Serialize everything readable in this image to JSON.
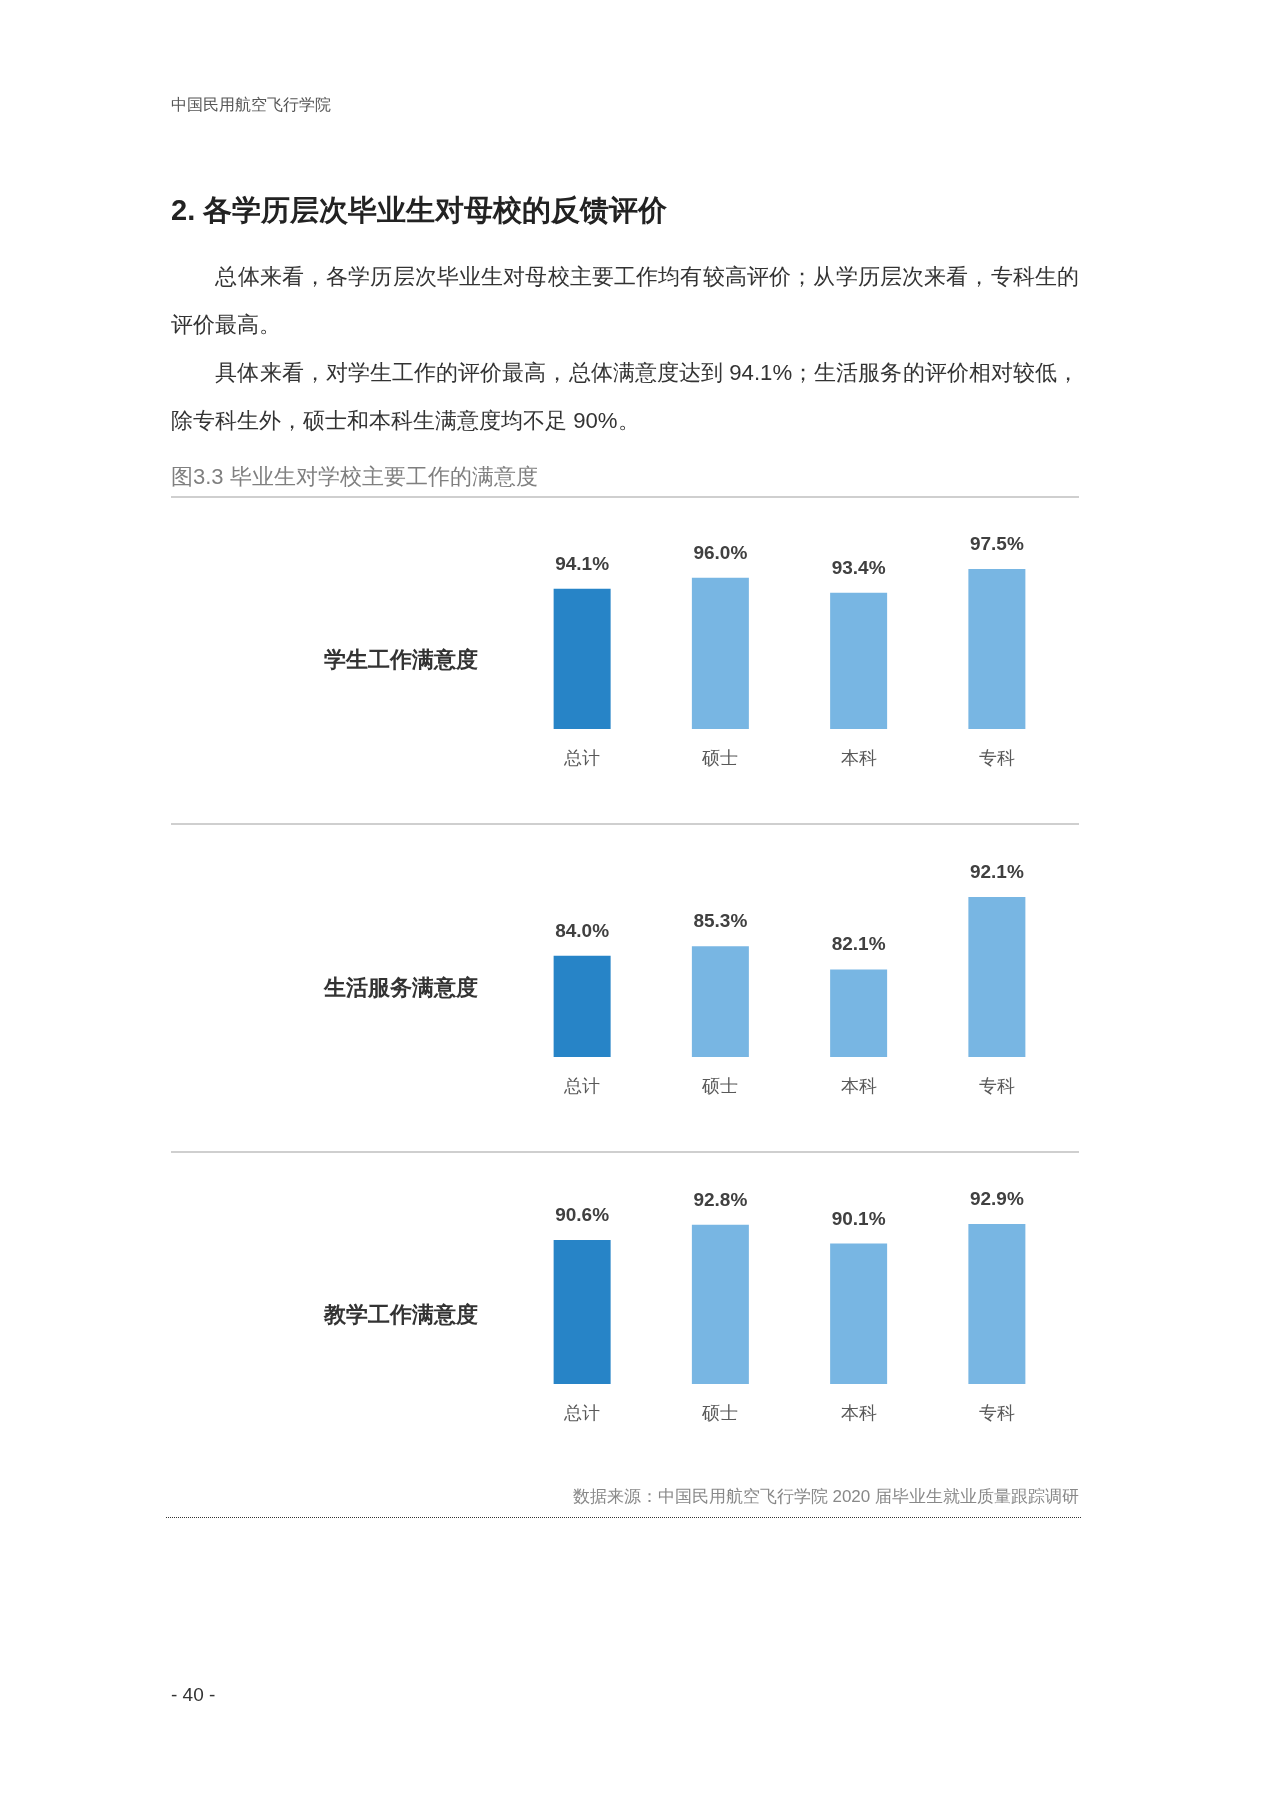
{
  "chart_data": [
    {
      "type": "bar",
      "title": "图3.3 毕业生对学校主要工作的满意度",
      "ylabel": "学生工作满意度",
      "categories": [
        "总计",
        "硕士",
        "本科",
        "专科"
      ],
      "values": [
        94.1,
        96.0,
        93.4,
        97.5
      ],
      "value_labels": [
        "94.1%",
        "96.0%",
        "93.4%",
        "97.5%"
      ],
      "colors": [
        "#2784c7",
        "#78b6e3",
        "#78b6e3",
        "#78b6e3"
      ],
      "ylim": [
        70,
        97.5
      ],
      "tick_labels": "x",
      "annotations": [
        "中国民用航空飞行学院",
        "2. 各学历层次毕业生对母校的反馈评价",
        "总体来看，各学历层次毕业生对母校主要工作均有较高评价；从学历层次来看，专科生的评价最高。",
        "具体来看，对学生工作的评价最高，总体满意度达到 94.1%；生活服务的评价相对较低，除专科生外，硕士和本科生满意度均不足 90%。"
      ]
    },
    {
      "type": "bar",
      "ylabel": "生活服务满意度",
      "categories": [
        "总计",
        "硕士",
        "本科",
        "专科"
      ],
      "values": [
        84.0,
        85.3,
        82.1,
        92.1
      ],
      "value_labels": [
        "84.0%",
        "85.3%",
        "82.1%",
        "92.1%"
      ],
      "colors": [
        "#2784c7",
        "#78b6e3",
        "#78b6e3",
        "#78b6e3"
      ],
      "ylim": [
        70,
        92.1
      ],
      "tick_labels": "x"
    },
    {
      "type": "bar",
      "ylabel": "教学工作满意度",
      "categories": [
        "总计",
        "硕士",
        "本科",
        "专科"
      ],
      "values": [
        90.6,
        92.8,
        90.1,
        92.9
      ],
      "value_labels": [
        "90.6%",
        "92.8%",
        "90.1%",
        "92.9%"
      ],
      "colors": [
        "#2784c7",
        "#78b6e3",
        "#78b6e3",
        "#78b6e3"
      ],
      "ylim": [
        70,
        92.9
      ],
      "tick_labels": "x",
      "annotations": [
        "数据来源：中国民用航空飞行学院 2020 届毕业生就业质量跟踪调研",
        "- 40 -"
      ]
    }
  ]
}
